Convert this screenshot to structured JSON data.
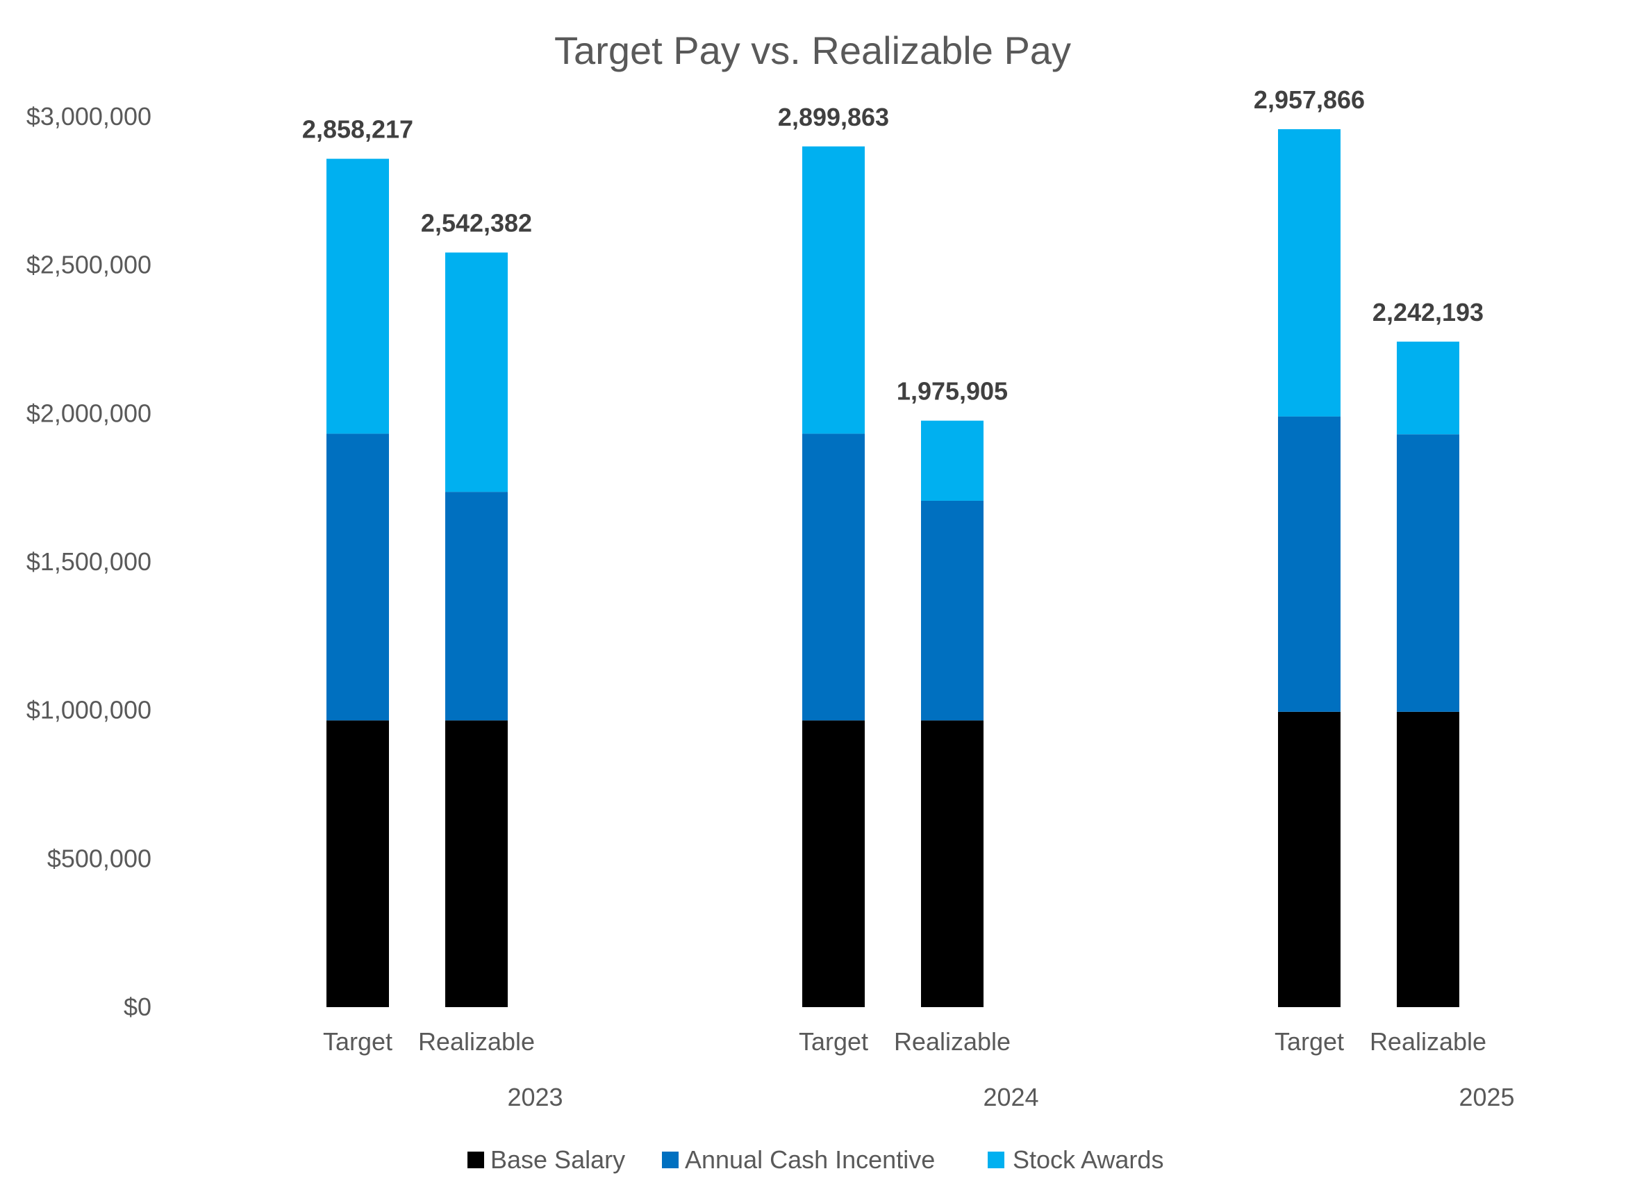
{
  "chart_data": {
    "type": "bar",
    "stacked": true,
    "title": "Target Pay vs. Realizable Pay",
    "ylim": [
      0,
      3000000
    ],
    "yticks": [
      "$0",
      "$500,000",
      "$1,000,000",
      "$1,500,000",
      "$2,000,000",
      "$2,500,000",
      "$3,000,000"
    ],
    "ytick_values": [
      0,
      500000,
      1000000,
      1500000,
      2000000,
      2500000,
      3000000
    ],
    "grid": false,
    "legend_position": "bottom",
    "groups": [
      "2023",
      "2024",
      "2025"
    ],
    "bar_labels": [
      "Target",
      "Realizable"
    ],
    "series": [
      {
        "name": "Base Salary",
        "color": "#000000",
        "values": [
          [
            966000,
            966000
          ],
          [
            966000,
            966000
          ],
          [
            995000,
            995000
          ]
        ]
      },
      {
        "name": "Annual Cash Incentive",
        "color": "#0070C0",
        "values": [
          [
            966000,
            770000
          ],
          [
            966000,
            740000
          ],
          [
            995000,
            935000
          ]
        ]
      },
      {
        "name": "Stock Awards",
        "color": "#00B0F0",
        "values": [
          [
            926217,
            806382
          ],
          [
            967863,
            269905
          ],
          [
            967866,
            312193
          ]
        ]
      }
    ],
    "totals": [
      [
        "2,858,217",
        "2,542,382"
      ],
      [
        "2,899,863",
        "1,975,905"
      ],
      [
        "2,957,866",
        "2,242,193"
      ]
    ]
  }
}
